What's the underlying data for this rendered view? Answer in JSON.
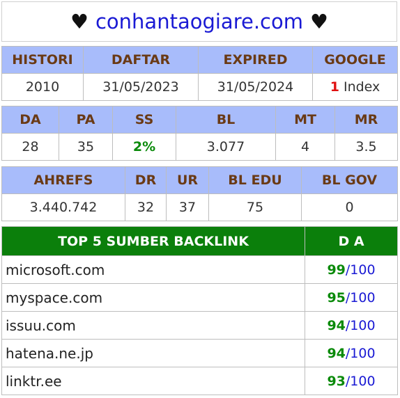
{
  "header": {
    "heart_left": "♥",
    "domain": "conhantaogiare.com",
    "heart_right": "♥"
  },
  "table1": {
    "headers": [
      "HISTORI",
      "DAFTAR",
      "EXPIRED",
      "GOOGLE"
    ],
    "values": [
      "2010",
      "31/05/2023",
      "31/05/2024"
    ],
    "google_count": "1",
    "google_suffix": " Index"
  },
  "table2": {
    "headers": [
      "DA",
      "PA",
      "SS",
      "BL",
      "MT",
      "MR"
    ],
    "values": [
      "28",
      "35",
      "2%",
      "3.077",
      "4",
      "3.5"
    ]
  },
  "table3": {
    "headers": [
      "AHREFS",
      "DR",
      "UR",
      "BL EDU",
      "BL GOV"
    ],
    "values": [
      "3.440.742",
      "32",
      "37",
      "75",
      "0"
    ]
  },
  "backlinks": {
    "header_source": "TOP 5 SUMBER BACKLINK",
    "header_da": "D A",
    "separator": "/",
    "max": "100",
    "rows": [
      {
        "site": "microsoft.com",
        "da": "99"
      },
      {
        "site": "myspace.com",
        "da": "95"
      },
      {
        "site": "issuu.com",
        "da": "94"
      },
      {
        "site": "hatena.ne.jp",
        "da": "94"
      },
      {
        "site": "linktr.ee",
        "da": "93"
      }
    ]
  },
  "colors": {
    "header_bg": "#a8bcfb",
    "header_text": "#6a3a15",
    "green_header": "#0b7f0b",
    "green_text": "#0a8a0a",
    "blue": "#1a1ad4",
    "red": "#e01010"
  }
}
